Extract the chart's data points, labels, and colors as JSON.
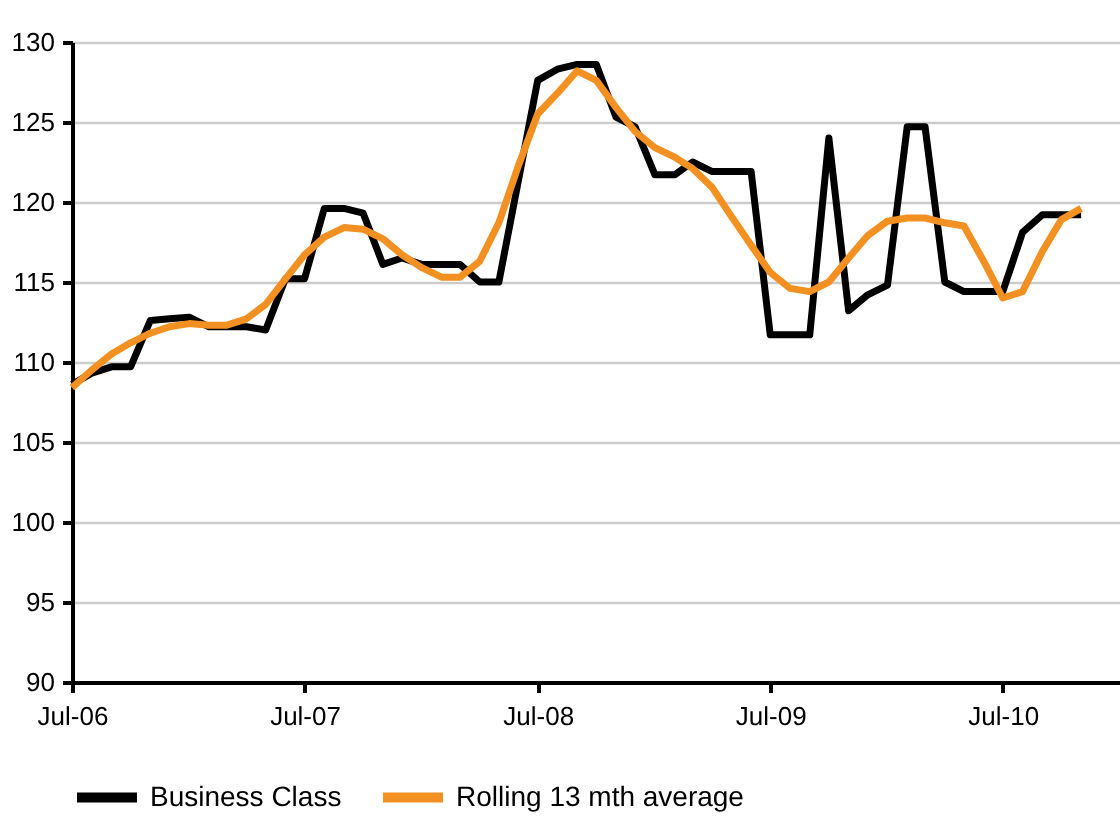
{
  "chart_data": {
    "type": "line",
    "x": [
      "2006-07",
      "2006-08",
      "2006-09",
      "2006-10",
      "2006-11",
      "2006-12",
      "2007-01",
      "2007-02",
      "2007-03",
      "2007-04",
      "2007-05",
      "2007-06",
      "2007-07",
      "2007-08",
      "2007-09",
      "2007-10",
      "2007-11",
      "2007-12",
      "2008-01",
      "2008-02",
      "2008-03",
      "2008-04",
      "2008-05",
      "2008-06",
      "2008-07",
      "2008-08",
      "2008-09",
      "2008-10",
      "2008-11",
      "2008-12",
      "2009-01",
      "2009-02",
      "2009-03",
      "2009-04",
      "2009-05",
      "2009-06",
      "2009-07",
      "2009-08",
      "2009-09",
      "2009-10",
      "2009-11",
      "2009-12",
      "2010-01",
      "2010-02",
      "2010-03",
      "2010-04",
      "2010-05",
      "2010-06",
      "2010-07",
      "2010-08",
      "2010-09",
      "2010-10",
      "2010-11"
    ],
    "series": [
      {
        "name": "Business Class",
        "color": "#000000",
        "values": [
          108.6,
          109.3,
          109.7,
          109.7,
          112.6,
          112.7,
          112.8,
          112.2,
          112.2,
          112.2,
          112.0,
          115.2,
          115.2,
          119.6,
          119.6,
          119.3,
          116.1,
          116.5,
          116.1,
          116.1,
          116.1,
          115.0,
          115.0,
          121.4,
          127.6,
          128.3,
          128.6,
          128.6,
          125.3,
          124.7,
          121.7,
          121.7,
          122.5,
          121.9,
          121.9,
          121.9,
          111.7,
          111.7,
          111.7,
          124.0,
          113.2,
          114.2,
          114.8,
          124.7,
          124.7,
          115.0,
          114.4,
          114.4,
          114.4,
          118.1,
          119.2,
          119.2,
          119.2
        ]
      },
      {
        "name": "Rolling 13 mth average",
        "color": "#f39022",
        "values": [
          108.4,
          109.5,
          110.5,
          111.2,
          111.8,
          112.2,
          112.4,
          112.3,
          112.3,
          112.7,
          113.6,
          115.2,
          116.7,
          117.8,
          118.4,
          118.3,
          117.7,
          116.7,
          115.9,
          115.3,
          115.3,
          116.3,
          118.7,
          122.3,
          125.5,
          126.8,
          128.2,
          127.6,
          125.9,
          124.4,
          123.4,
          122.8,
          122.1,
          120.9,
          119.1,
          117.3,
          115.6,
          114.6,
          114.4,
          115.0,
          116.5,
          117.9,
          118.8,
          119.0,
          119.0,
          118.7,
          118.5,
          116.3,
          114.0,
          114.4,
          116.9,
          118.9,
          119.6
        ]
      }
    ],
    "xlim": [
      "2006-07",
      "2011-01"
    ],
    "xticks": [
      {
        "value": "2006-07",
        "label": "Jul-06"
      },
      {
        "value": "2007-07",
        "label": "Jul-07"
      },
      {
        "value": "2008-07",
        "label": "Jul-08"
      },
      {
        "value": "2009-07",
        "label": "Jul-09"
      },
      {
        "value": "2010-07",
        "label": "Jul-10"
      }
    ],
    "ylim": [
      90,
      130
    ],
    "yticks": [
      90,
      95,
      100,
      105,
      110,
      115,
      120,
      125,
      130
    ],
    "grid": "y",
    "legend": "bottom",
    "line_style": "solid",
    "marker": "none"
  }
}
